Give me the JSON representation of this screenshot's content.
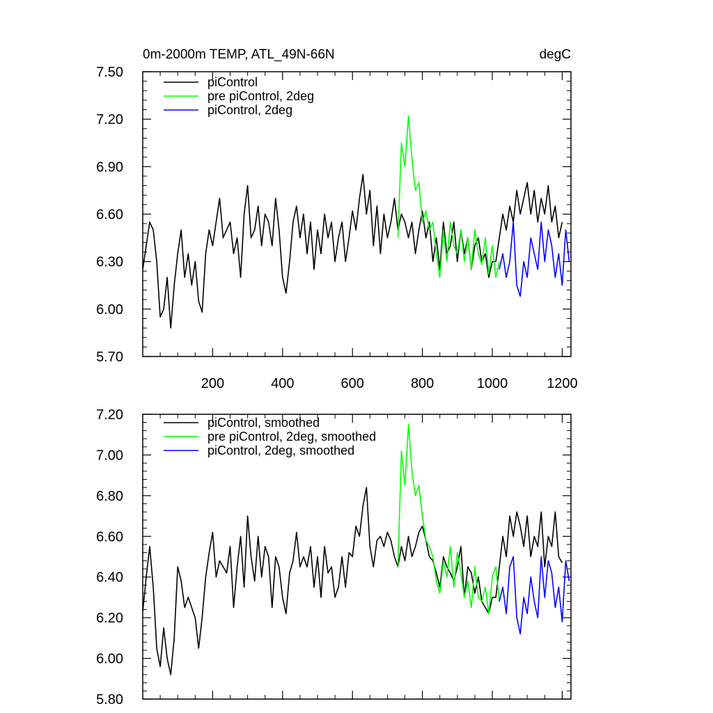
{
  "chart_data": [
    {
      "type": "line",
      "title": "0m-2000m TEMP, ATL_49N-66N",
      "units_label": "degC",
      "xlabel": "",
      "ylabel": "",
      "xlim": [
        0,
        1225
      ],
      "ylim": [
        5.7,
        7.5
      ],
      "x_ticks": [
        200,
        400,
        600,
        800,
        1000,
        1200
      ],
      "y_ticks": [
        5.7,
        6.0,
        6.3,
        6.6,
        6.9,
        7.2,
        7.5
      ],
      "y_tick_labels": [
        "5.70",
        "6.00",
        "6.30",
        "6.60",
        "6.90",
        "7.20",
        "7.50"
      ],
      "legend_position": "top-left",
      "series": [
        {
          "name": "piControl",
          "color": "#000000",
          "x": [
            0,
            10,
            20,
            30,
            40,
            50,
            60,
            70,
            80,
            90,
            100,
            110,
            120,
            130,
            140,
            150,
            160,
            170,
            180,
            190,
            200,
            210,
            220,
            230,
            240,
            250,
            260,
            270,
            280,
            290,
            300,
            310,
            320,
            330,
            340,
            350,
            360,
            370,
            380,
            390,
            400,
            410,
            420,
            430,
            440,
            450,
            460,
            470,
            480,
            490,
            500,
            510,
            520,
            530,
            540,
            550,
            560,
            570,
            580,
            590,
            600,
            610,
            620,
            630,
            640,
            650,
            660,
            670,
            680,
            690,
            700,
            710,
            720,
            730,
            740,
            750,
            760,
            770,
            780,
            790,
            800,
            810,
            820,
            830,
            840,
            850,
            860,
            870,
            880,
            890,
            900,
            910,
            920,
            930,
            940,
            950,
            960,
            970,
            980,
            990,
            1000,
            1010,
            1020,
            1030,
            1040,
            1050,
            1060,
            1070,
            1080,
            1090,
            1100,
            1110,
            1120,
            1130,
            1140,
            1150,
            1160,
            1170,
            1180,
            1190,
            1200
          ],
          "values": [
            6.25,
            6.4,
            6.55,
            6.5,
            6.3,
            5.95,
            6.0,
            6.2,
            5.88,
            6.15,
            6.35,
            6.5,
            6.2,
            6.35,
            6.15,
            6.3,
            6.05,
            5.98,
            6.35,
            6.5,
            6.4,
            6.55,
            6.7,
            6.45,
            6.5,
            6.55,
            6.35,
            6.45,
            6.2,
            6.6,
            6.78,
            6.45,
            6.5,
            6.65,
            6.4,
            6.6,
            6.55,
            6.4,
            6.7,
            6.5,
            6.2,
            6.1,
            6.3,
            6.55,
            6.65,
            6.45,
            6.6,
            6.35,
            6.55,
            6.25,
            6.5,
            6.35,
            6.6,
            6.45,
            6.55,
            6.3,
            6.45,
            6.55,
            6.3,
            6.45,
            6.62,
            6.5,
            6.7,
            6.85,
            6.6,
            6.75,
            6.4,
            6.65,
            6.35,
            6.6,
            6.45,
            6.55,
            6.7,
            6.5,
            6.6,
            6.55,
            6.45,
            6.55,
            6.35,
            6.5,
            6.62,
            6.45,
            6.55,
            6.3,
            6.45,
            6.25,
            6.55,
            6.35,
            6.4,
            6.55,
            6.3,
            6.5,
            6.35,
            6.45,
            6.25,
            6.4,
            6.45,
            6.3,
            6.35,
            6.2,
            6.3,
            6.3,
            6.45,
            6.6,
            6.5,
            6.65,
            6.55,
            6.75,
            6.6,
            6.7,
            6.8,
            6.6,
            6.75,
            6.55,
            6.7,
            6.6,
            6.78,
            6.55,
            6.65,
            6.45,
            6.55
          ]
        },
        {
          "name": "pre piControl, 2deg",
          "color": "#00ff00",
          "x": [
            730,
            740,
            750,
            760,
            770,
            780,
            790,
            800,
            810,
            820,
            830,
            840,
            850,
            860,
            870,
            880,
            890,
            900,
            910,
            920,
            930,
            940,
            950,
            960,
            970,
            980,
            990,
            1000,
            1010,
            1020
          ],
          "values": [
            6.45,
            7.05,
            6.9,
            7.22,
            6.95,
            6.75,
            6.8,
            6.55,
            6.62,
            6.5,
            6.55,
            6.35,
            6.2,
            6.5,
            6.3,
            6.55,
            6.4,
            6.35,
            6.5,
            6.3,
            6.45,
            6.25,
            6.5,
            6.35,
            6.28,
            6.45,
            6.22,
            6.4,
            6.2,
            6.3
          ]
        },
        {
          "name": "piControl, 2deg",
          "color": "#0000ff",
          "x": [
            1020,
            1030,
            1040,
            1050,
            1060,
            1070,
            1080,
            1090,
            1100,
            1110,
            1120,
            1130,
            1140,
            1150,
            1160,
            1170,
            1180,
            1190,
            1200,
            1210,
            1220
          ],
          "values": [
            6.25,
            6.35,
            6.2,
            6.3,
            6.55,
            6.15,
            6.08,
            6.3,
            6.2,
            6.45,
            6.35,
            6.25,
            6.55,
            6.3,
            6.5,
            6.4,
            6.2,
            6.35,
            6.15,
            6.5,
            6.3
          ]
        }
      ]
    },
    {
      "type": "line",
      "title": "",
      "xlabel": "",
      "ylabel": "",
      "xlim": [
        0,
        1225
      ],
      "ylim": [
        5.8,
        7.2
      ],
      "x_ticks": [
        200,
        400,
        600,
        800,
        1000,
        1200
      ],
      "y_ticks": [
        5.8,
        6.0,
        6.2,
        6.4,
        6.6,
        6.8,
        7.0,
        7.2
      ],
      "y_tick_labels": [
        "5.80",
        "6.00",
        "6.20",
        "6.40",
        "6.60",
        "6.80",
        "7.00",
        "7.20"
      ],
      "legend_position": "top-left",
      "series": [
        {
          "name": "piControl, smoothed",
          "color": "#000000",
          "x": [
            0,
            10,
            20,
            30,
            40,
            50,
            60,
            70,
            80,
            90,
            100,
            110,
            120,
            130,
            140,
            150,
            160,
            170,
            180,
            190,
            200,
            210,
            220,
            230,
            240,
            250,
            260,
            270,
            280,
            290,
            300,
            310,
            320,
            330,
            340,
            350,
            360,
            370,
            380,
            390,
            400,
            410,
            420,
            430,
            440,
            450,
            460,
            470,
            480,
            490,
            500,
            510,
            520,
            530,
            540,
            550,
            560,
            570,
            580,
            590,
            600,
            610,
            620,
            630,
            640,
            650,
            660,
            670,
            680,
            690,
            700,
            710,
            720,
            730,
            740,
            750,
            760,
            770,
            780,
            790,
            800,
            810,
            820,
            830,
            840,
            850,
            860,
            870,
            880,
            890,
            900,
            910,
            920,
            930,
            940,
            950,
            960,
            970,
            980,
            990,
            1000,
            1010,
            1020,
            1030,
            1040,
            1050,
            1060,
            1070,
            1080,
            1090,
            1100,
            1110,
            1120,
            1130,
            1140,
            1150,
            1160,
            1170,
            1180,
            1190,
            1200
          ],
          "values": [
            6.23,
            6.4,
            6.55,
            6.35,
            6.05,
            5.96,
            6.15,
            6.0,
            5.92,
            6.1,
            6.45,
            6.38,
            6.25,
            6.3,
            6.25,
            6.2,
            6.05,
            6.2,
            6.4,
            6.52,
            6.62,
            6.4,
            6.48,
            6.45,
            6.42,
            6.55,
            6.25,
            6.45,
            6.6,
            6.35,
            6.7,
            6.5,
            6.38,
            6.6,
            6.4,
            6.55,
            6.5,
            6.25,
            6.5,
            6.45,
            6.3,
            6.22,
            6.42,
            6.48,
            6.62,
            6.45,
            6.5,
            6.45,
            6.55,
            6.35,
            6.5,
            6.3,
            6.55,
            6.42,
            6.45,
            6.3,
            6.35,
            6.5,
            6.35,
            6.52,
            6.5,
            6.65,
            6.6,
            6.75,
            6.84,
            6.55,
            6.45,
            6.58,
            6.6,
            6.55,
            6.62,
            6.58,
            6.5,
            6.45,
            6.55,
            6.48,
            6.6,
            6.5,
            6.55,
            6.62,
            6.65,
            6.58,
            6.5,
            6.48,
            6.42,
            6.35,
            6.5,
            6.45,
            6.42,
            6.38,
            6.45,
            6.55,
            6.3,
            6.45,
            6.42,
            6.32,
            6.4,
            6.28,
            6.25,
            6.22,
            6.3,
            6.3,
            6.45,
            6.6,
            6.5,
            6.7,
            6.6,
            6.72,
            6.65,
            6.55,
            6.7,
            6.5,
            6.6,
            6.55,
            6.72,
            6.45,
            6.6,
            6.55,
            6.72,
            6.5,
            6.47
          ]
        },
        {
          "name": "pre piControl, 2deg, smoothed",
          "color": "#00ff00",
          "x": [
            730,
            740,
            750,
            760,
            770,
            780,
            790,
            800,
            810,
            820,
            830,
            840,
            850,
            860,
            870,
            880,
            890,
            900,
            910,
            920,
            930,
            940,
            950,
            960,
            970,
            980,
            990,
            1000,
            1010,
            1020
          ],
          "values": [
            6.45,
            7.02,
            6.85,
            7.15,
            6.92,
            6.8,
            6.85,
            6.7,
            6.58,
            6.55,
            6.5,
            6.38,
            6.32,
            6.48,
            6.4,
            6.55,
            6.35,
            6.52,
            6.42,
            6.3,
            6.38,
            6.25,
            6.45,
            6.3,
            6.28,
            6.35,
            6.22,
            6.4,
            6.45,
            6.28
          ]
        },
        {
          "name": "piControl, 2deg, smoothed",
          "color": "#0000ff",
          "x": [
            1020,
            1030,
            1040,
            1050,
            1060,
            1070,
            1080,
            1090,
            1100,
            1110,
            1120,
            1130,
            1140,
            1150,
            1160,
            1170,
            1180,
            1190,
            1200,
            1210,
            1220
          ],
          "values": [
            6.28,
            6.35,
            6.22,
            6.45,
            6.5,
            6.2,
            6.12,
            6.3,
            6.22,
            6.4,
            6.28,
            6.2,
            6.5,
            6.3,
            6.48,
            6.42,
            6.25,
            6.35,
            6.18,
            6.48,
            6.38
          ]
        }
      ]
    }
  ]
}
